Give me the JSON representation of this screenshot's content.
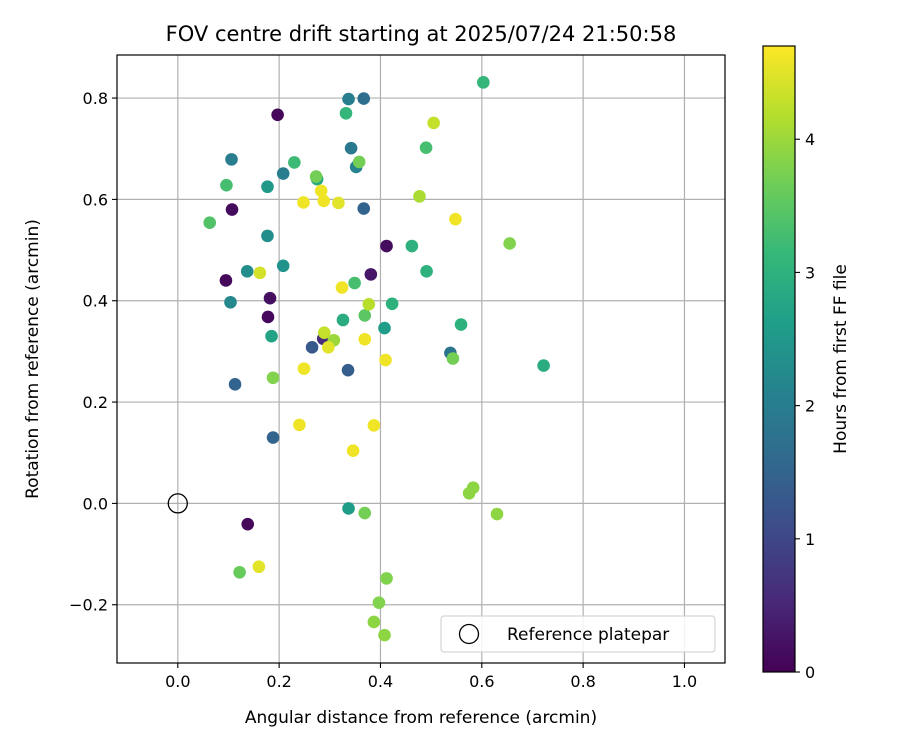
{
  "chart_data": {
    "type": "scatter",
    "title": "FOV centre drift starting at 2025/07/24 21:50:58",
    "xlabel": "Angular distance from reference (arcmin)",
    "ylabel": "Rotation from reference (arcmin)",
    "xlim": [
      -0.12,
      1.08
    ],
    "ylim": [
      -0.315,
      0.885
    ],
    "xticks": [
      0.0,
      0.2,
      0.4,
      0.6,
      0.8,
      1.0
    ],
    "xtick_labels": [
      "0.0",
      "0.2",
      "0.4",
      "0.6",
      "0.8",
      "1.0"
    ],
    "yticks": [
      -0.2,
      0.0,
      0.2,
      0.4,
      0.6,
      0.8
    ],
    "ytick_labels": [
      "−0.2",
      "0.0",
      "0.2",
      "0.4",
      "0.6",
      "0.8"
    ],
    "grid": true,
    "legend": {
      "position": "lower-right",
      "entries": [
        {
          "label": "Reference platepar",
          "marker": "hollow-circle"
        }
      ]
    },
    "reference_point": {
      "x": 0.0,
      "y": 0.0
    },
    "colorbar": {
      "label": "Hours from first FF file",
      "colormap": "viridis",
      "range": [
        0,
        4.7
      ],
      "ticks": [
        0,
        1,
        2,
        3,
        4
      ],
      "tick_labels": [
        "0",
        "1",
        "2",
        "3",
        "4"
      ]
    },
    "series": [
      {
        "points": [
          {
            "x": 0.197,
            "y": 0.767,
            "c": 0.1
          },
          {
            "x": 0.107,
            "y": 0.58,
            "c": 0.15
          },
          {
            "x": 0.095,
            "y": 0.44,
            "c": 0.1
          },
          {
            "x": 0.182,
            "y": 0.405,
            "c": 0.2
          },
          {
            "x": 0.178,
            "y": 0.368,
            "c": 0.1
          },
          {
            "x": 0.138,
            "y": -0.041,
            "c": 0.1
          },
          {
            "x": 0.412,
            "y": 0.508,
            "c": 0.15
          },
          {
            "x": 0.381,
            "y": 0.452,
            "c": 0.3
          },
          {
            "x": 0.287,
            "y": 0.325,
            "c": 0.6
          },
          {
            "x": 0.265,
            "y": 0.308,
            "c": 1.3
          },
          {
            "x": 0.336,
            "y": 0.263,
            "c": 1.4
          },
          {
            "x": 0.113,
            "y": 0.235,
            "c": 1.5
          },
          {
            "x": 0.188,
            "y": 0.13,
            "c": 1.5
          },
          {
            "x": 0.367,
            "y": 0.582,
            "c": 1.5
          },
          {
            "x": 0.538,
            "y": 0.297,
            "c": 1.8
          },
          {
            "x": 0.337,
            "y": 0.798,
            "c": 2.0
          },
          {
            "x": 0.367,
            "y": 0.799,
            "c": 1.7
          },
          {
            "x": 0.342,
            "y": 0.701,
            "c": 1.9
          },
          {
            "x": 0.352,
            "y": 0.664,
            "c": 2.1
          },
          {
            "x": 0.208,
            "y": 0.651,
            "c": 2.0
          },
          {
            "x": 0.106,
            "y": 0.679,
            "c": 2.0
          },
          {
            "x": 0.104,
            "y": 0.397,
            "c": 2.2
          },
          {
            "x": 0.137,
            "y": 0.458,
            "c": 2.3
          },
          {
            "x": 0.208,
            "y": 0.469,
            "c": 2.4
          },
          {
            "x": 0.177,
            "y": 0.528,
            "c": 2.3
          },
          {
            "x": 0.177,
            "y": 0.625,
            "c": 2.5
          },
          {
            "x": 0.185,
            "y": 0.33,
            "c": 2.7
          },
          {
            "x": 0.408,
            "y": 0.346,
            "c": 2.6
          },
          {
            "x": 0.337,
            "y": -0.01,
            "c": 2.6
          },
          {
            "x": 0.275,
            "y": 0.64,
            "c": 2.8
          },
          {
            "x": 0.326,
            "y": 0.362,
            "c": 2.9
          },
          {
            "x": 0.423,
            "y": 0.394,
            "c": 3.0
          },
          {
            "x": 0.462,
            "y": 0.508,
            "c": 3.0
          },
          {
            "x": 0.491,
            "y": 0.458,
            "c": 3.0
          },
          {
            "x": 0.559,
            "y": 0.353,
            "c": 3.0
          },
          {
            "x": 0.722,
            "y": 0.272,
            "c": 2.9
          },
          {
            "x": 0.603,
            "y": 0.831,
            "c": 3.1
          },
          {
            "x": 0.332,
            "y": 0.77,
            "c": 3.1
          },
          {
            "x": 0.23,
            "y": 0.673,
            "c": 3.2
          },
          {
            "x": 0.096,
            "y": 0.628,
            "c": 3.3
          },
          {
            "x": 0.49,
            "y": 0.702,
            "c": 3.3
          },
          {
            "x": 0.063,
            "y": 0.554,
            "c": 3.4
          },
          {
            "x": 0.349,
            "y": 0.435,
            "c": 3.3
          },
          {
            "x": 0.369,
            "y": 0.371,
            "c": 3.5
          },
          {
            "x": 0.273,
            "y": 0.645,
            "c": 3.7
          },
          {
            "x": 0.358,
            "y": 0.674,
            "c": 3.7
          },
          {
            "x": 0.122,
            "y": -0.136,
            "c": 3.6
          },
          {
            "x": 0.369,
            "y": -0.019,
            "c": 3.7
          },
          {
            "x": 0.188,
            "y": 0.248,
            "c": 3.8
          },
          {
            "x": 0.543,
            "y": 0.286,
            "c": 3.7
          },
          {
            "x": 0.655,
            "y": 0.513,
            "c": 3.8
          },
          {
            "x": 0.575,
            "y": 0.02,
            "c": 3.9
          },
          {
            "x": 0.583,
            "y": 0.031,
            "c": 3.9
          },
          {
            "x": 0.63,
            "y": -0.021,
            "c": 3.9
          },
          {
            "x": 0.412,
            "y": -0.148,
            "c": 3.8
          },
          {
            "x": 0.397,
            "y": -0.196,
            "c": 3.8
          },
          {
            "x": 0.387,
            "y": -0.234,
            "c": 3.9
          },
          {
            "x": 0.408,
            "y": -0.26,
            "c": 3.9
          },
          {
            "x": 0.308,
            "y": 0.322,
            "c": 4.0
          },
          {
            "x": 0.477,
            "y": 0.606,
            "c": 4.1
          },
          {
            "x": 0.377,
            "y": 0.393,
            "c": 4.2
          },
          {
            "x": 0.505,
            "y": 0.751,
            "c": 4.3
          },
          {
            "x": 0.162,
            "y": 0.455,
            "c": 4.4
          },
          {
            "x": 0.16,
            "y": -0.125,
            "c": 4.5
          },
          {
            "x": 0.248,
            "y": 0.594,
            "c": 4.6
          },
          {
            "x": 0.283,
            "y": 0.617,
            "c": 4.6
          },
          {
            "x": 0.288,
            "y": 0.597,
            "c": 4.6
          },
          {
            "x": 0.317,
            "y": 0.593,
            "c": 4.5
          },
          {
            "x": 0.548,
            "y": 0.561,
            "c": 4.6
          },
          {
            "x": 0.324,
            "y": 0.426,
            "c": 4.6
          },
          {
            "x": 0.289,
            "y": 0.337,
            "c": 4.3
          },
          {
            "x": 0.297,
            "y": 0.308,
            "c": 4.5
          },
          {
            "x": 0.369,
            "y": 0.324,
            "c": 4.6
          },
          {
            "x": 0.41,
            "y": 0.283,
            "c": 4.6
          },
          {
            "x": 0.249,
            "y": 0.266,
            "c": 4.6
          },
          {
            "x": 0.24,
            "y": 0.155,
            "c": 4.6
          },
          {
            "x": 0.387,
            "y": 0.154,
            "c": 4.6
          },
          {
            "x": 0.346,
            "y": 0.104,
            "c": 4.6
          }
        ]
      }
    ]
  }
}
